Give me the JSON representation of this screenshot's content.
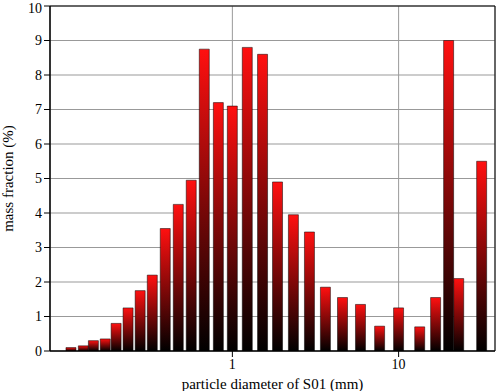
{
  "chart_data": {
    "type": "bar",
    "x_label": "particle diameter of S01 (mm)",
    "y_label": "mass fraction (%)",
    "x": [
      0.107,
      0.127,
      0.146,
      0.172,
      0.2,
      0.236,
      0.279,
      0.33,
      0.395,
      0.473,
      0.566,
      0.678,
      0.824,
      1.0,
      1.23,
      1.52,
      1.87,
      2.33,
      2.91,
      3.63,
      4.6,
      5.9,
      7.69,
      10.0,
      13.4,
      16.7,
      20.0,
      23.0,
      31.6
    ],
    "values": [
      0.1,
      0.15,
      0.3,
      0.35,
      0.8,
      1.25,
      1.75,
      2.2,
      3.55,
      4.25,
      4.95,
      8.75,
      7.2,
      7.1,
      8.8,
      8.6,
      4.9,
      3.95,
      3.45,
      1.85,
      1.55,
      1.35,
      0.72,
      1.25,
      0.7,
      1.55,
      9.0,
      2.1,
      5.5
    ],
    "color": "#ff1010",
    "log": "x",
    "xlim": [
      0.08,
      38
    ],
    "xticks": [
      1,
      10
    ],
    "ylim": [
      0,
      10
    ],
    "yticks": [
      0,
      1,
      2,
      3,
      4,
      5,
      6,
      7,
      8,
      9,
      10
    ],
    "grid": true
  }
}
